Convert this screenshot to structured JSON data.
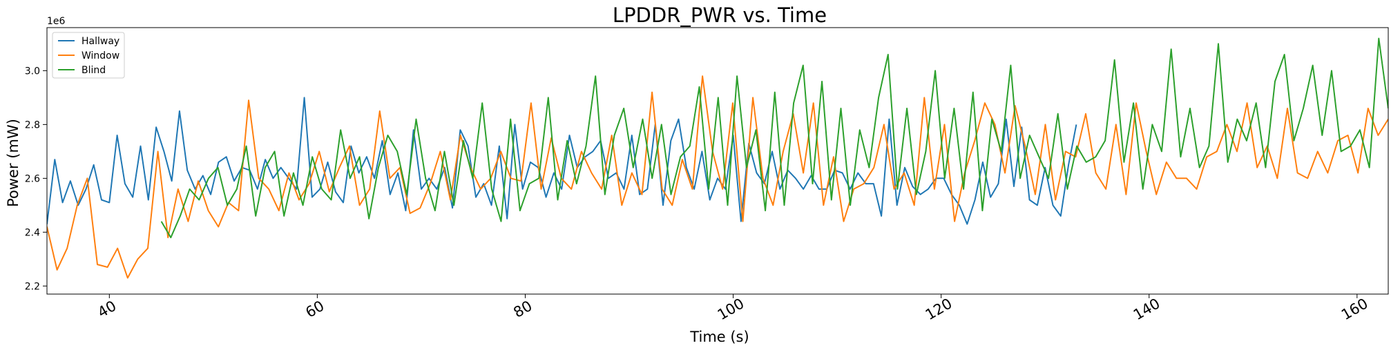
{
  "chart_data": {
    "type": "line",
    "title": "LPDDR_PWR vs. Time",
    "xlabel": "Time (s)",
    "ylabel": "Power (mW)",
    "y_offset_label": "1e6",
    "xlim": [
      34,
      163
    ],
    "ylim": [
      2170000,
      3160000
    ],
    "xticks": [
      40,
      60,
      80,
      100,
      120,
      140,
      160
    ],
    "yticks": [
      2200000,
      2400000,
      2600000,
      2800000,
      3000000
    ],
    "ytick_labels": [
      "2.2",
      "2.4",
      "2.6",
      "2.8",
      "3.0"
    ],
    "legend_position": "upper-left",
    "grid": false,
    "series": [
      {
        "name": "Hallway",
        "color": "#1f77b4",
        "x_start": 34,
        "x_end": 133,
        "step": 3,
        "values": [
          2430000,
          2670000,
          2510000,
          2590000,
          2500000,
          2560000,
          2650000,
          2520000,
          2510000,
          2760000,
          2580000,
          2530000,
          2720000,
          2520000,
          2790000,
          2700000,
          2590000,
          2850000,
          2630000,
          2560000,
          2610000,
          2540000,
          2660000,
          2680000,
          2590000,
          2640000,
          2630000,
          2560000,
          2670000,
          2600000,
          2640000,
          2600000,
          2560000,
          2900000,
          2530000,
          2560000,
          2660000,
          2550000,
          2510000,
          2720000,
          2620000,
          2680000,
          2600000,
          2740000,
          2540000,
          2620000,
          2480000,
          2780000,
          2560000,
          2600000,
          2560000,
          2640000,
          2490000,
          2780000,
          2720000,
          2530000,
          2580000,
          2500000,
          2720000,
          2450000,
          2800000,
          2560000,
          2660000,
          2640000,
          2530000,
          2620000,
          2560000,
          2760000,
          2640000,
          2680000,
          2700000,
          2740000,
          2600000,
          2620000,
          2560000,
          2760000,
          2540000,
          2560000,
          2800000,
          2500000,
          2740000,
          2820000,
          2640000,
          2560000,
          2700000,
          2520000,
          2600000,
          2560000,
          2760000,
          2440000,
          2730000,
          2620000,
          2580000,
          2700000,
          2560000,
          2630000,
          2600000,
          2560000,
          2610000,
          2560000,
          2560000,
          2630000,
          2620000,
          2560000,
          2620000,
          2580000,
          2580000,
          2460000,
          2820000,
          2500000,
          2640000,
          2570000,
          2540000,
          2560000,
          2600000,
          2600000,
          2540000,
          2500000,
          2430000,
          2520000,
          2660000,
          2530000,
          2580000,
          2820000,
          2570000,
          2790000,
          2520000,
          2500000,
          2640000,
          2500000,
          2460000,
          2650000,
          2800000
        ]
      },
      {
        "name": "Window",
        "color": "#ff7f0e",
        "x_start": 34,
        "x_end": 163,
        "step": 3,
        "values": [
          2420000,
          2260000,
          2340000,
          2500000,
          2600000,
          2280000,
          2270000,
          2340000,
          2230000,
          2300000,
          2340000,
          2700000,
          2380000,
          2560000,
          2440000,
          2590000,
          2480000,
          2420000,
          2510000,
          2480000,
          2890000,
          2600000,
          2560000,
          2480000,
          2620000,
          2520000,
          2580000,
          2700000,
          2550000,
          2640000,
          2720000,
          2500000,
          2560000,
          2850000,
          2600000,
          2640000,
          2470000,
          2490000,
          2580000,
          2700000,
          2520000,
          2760000,
          2640000,
          2560000,
          2600000,
          2700000,
          2600000,
          2590000,
          2880000,
          2560000,
          2750000,
          2600000,
          2560000,
          2700000,
          2620000,
          2560000,
          2760000,
          2500000,
          2620000,
          2540000,
          2920000,
          2560000,
          2500000,
          2670000,
          2560000,
          2980000,
          2700000,
          2560000,
          2880000,
          2440000,
          2900000,
          2600000,
          2500000,
          2700000,
          2840000,
          2620000,
          2880000,
          2500000,
          2680000,
          2440000,
          2560000,
          2580000,
          2640000,
          2800000,
          2560000,
          2620000,
          2500000,
          2900000,
          2560000,
          2800000,
          2440000,
          2620000,
          2740000,
          2880000,
          2800000,
          2620000,
          2870000,
          2720000,
          2540000,
          2800000,
          2520000,
          2700000,
          2680000,
          2840000,
          2620000,
          2560000,
          2800000,
          2540000,
          2880000,
          2700000,
          2540000,
          2660000,
          2600000,
          2600000,
          2560000,
          2680000,
          2700000,
          2800000,
          2700000,
          2880000,
          2640000,
          2720000,
          2600000,
          2860000,
          2620000,
          2600000,
          2700000,
          2620000,
          2740000,
          2760000,
          2620000,
          2860000,
          2760000,
          2820000
        ]
      },
      {
        "name": "Blind",
        "color": "#2ca02c",
        "x_start": 45,
        "x_end": 163,
        "step": 3,
        "values": [
          2440000,
          2380000,
          2460000,
          2560000,
          2520000,
          2600000,
          2640000,
          2500000,
          2560000,
          2720000,
          2460000,
          2640000,
          2700000,
          2460000,
          2620000,
          2500000,
          2680000,
          2560000,
          2520000,
          2780000,
          2600000,
          2680000,
          2450000,
          2640000,
          2760000,
          2700000,
          2540000,
          2820000,
          2600000,
          2480000,
          2700000,
          2500000,
          2740000,
          2600000,
          2880000,
          2560000,
          2440000,
          2820000,
          2480000,
          2580000,
          2600000,
          2900000,
          2520000,
          2740000,
          2580000,
          2720000,
          2980000,
          2540000,
          2760000,
          2860000,
          2640000,
          2820000,
          2600000,
          2800000,
          2540000,
          2680000,
          2720000,
          2940000,
          2560000,
          2900000,
          2500000,
          2980000,
          2640000,
          2780000,
          2480000,
          2920000,
          2500000,
          2880000,
          3020000,
          2580000,
          2960000,
          2520000,
          2860000,
          2500000,
          2780000,
          2640000,
          2900000,
          3060000,
          2560000,
          2860000,
          2540000,
          2700000,
          3000000,
          2600000,
          2860000,
          2560000,
          2920000,
          2480000,
          2820000,
          2700000,
          3020000,
          2600000,
          2760000,
          2680000,
          2600000,
          2840000,
          2560000,
          2720000,
          2660000,
          2680000,
          2740000,
          3040000,
          2660000,
          2880000,
          2560000,
          2800000,
          2700000,
          3080000,
          2680000,
          2860000,
          2640000,
          2720000,
          3100000,
          2660000,
          2820000,
          2740000,
          2880000,
          2640000,
          2960000,
          3060000,
          2740000,
          2860000,
          3020000,
          2760000,
          3000000,
          2700000,
          2720000,
          2780000,
          2640000,
          3120000,
          2860000
        ]
      }
    ]
  }
}
